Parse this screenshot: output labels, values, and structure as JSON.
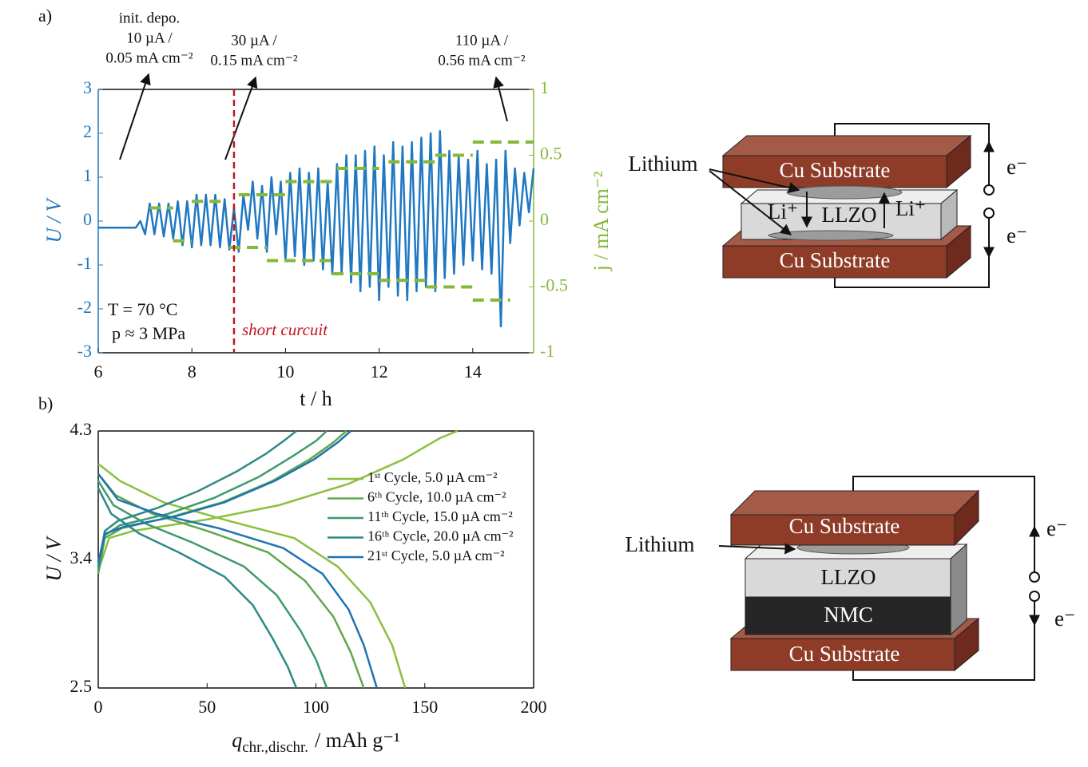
{
  "chart_data": [
    {
      "type": "line",
      "panel_label": "a)",
      "xlabel": "t / h",
      "ylabel": "U / V",
      "y2label": "j / mA cm⁻²",
      "xlim": [
        6,
        15.3
      ],
      "xticks": [
        6,
        8,
        10,
        12,
        14
      ],
      "ylim": [
        -3,
        3
      ],
      "yticks": [
        -3,
        -2,
        -1,
        0,
        1,
        2,
        3
      ],
      "y2lim": [
        -1,
        1
      ],
      "y2ticks": [
        -1,
        -0.5,
        0,
        0.5,
        1
      ],
      "y_color": "#1f78c1",
      "y2_color": "#86b83a",
      "series": [
        {
          "name": "U",
          "color": "#1f78c1",
          "x": [
            6.0,
            6.8,
            6.9,
            7.0,
            7.1,
            7.2,
            7.3,
            7.4,
            7.5,
            7.6,
            7.7,
            7.8,
            7.9,
            8.0,
            8.1,
            8.2,
            8.3,
            8.4,
            8.5,
            8.6,
            8.7,
            8.8,
            8.9,
            9.0,
            9.1,
            9.2,
            9.3,
            9.4,
            9.5,
            9.6,
            9.7,
            9.8,
            9.9,
            10.0,
            10.1,
            10.2,
            10.3,
            10.4,
            10.5,
            10.6,
            10.7,
            10.8,
            10.9,
            11.0,
            11.1,
            11.2,
            11.3,
            11.4,
            11.5,
            11.6,
            11.7,
            11.8,
            11.9,
            12.0,
            12.1,
            12.2,
            12.3,
            12.4,
            12.5,
            12.6,
            12.7,
            12.8,
            12.9,
            13.0,
            13.1,
            13.2,
            13.3,
            13.4,
            13.5,
            13.6,
            13.7,
            13.8,
            13.9,
            14.0,
            14.1,
            14.2,
            14.3,
            14.4,
            14.5,
            14.6,
            14.7,
            14.8,
            14.9,
            15.0,
            15.1,
            15.2,
            15.3
          ],
          "values": [
            -0.15,
            -0.15,
            0.0,
            -0.3,
            0.4,
            -0.3,
            0.4,
            -0.35,
            0.4,
            -0.4,
            0.45,
            -0.55,
            0.45,
            -0.6,
            0.6,
            -0.55,
            0.6,
            -0.55,
            0.6,
            -0.6,
            0.5,
            -0.65,
            0.3,
            -0.7,
            0.6,
            -0.2,
            0.9,
            -0.4,
            0.8,
            -0.7,
            1.0,
            -0.3,
            0.9,
            -0.9,
            1.1,
            -0.8,
            1.2,
            -1.0,
            1.1,
            -0.9,
            1.2,
            -1.1,
            0.9,
            -1.2,
            1.3,
            -1.2,
            1.5,
            -1.4,
            1.5,
            -1.6,
            1.6,
            -1.5,
            1.7,
            -1.8,
            1.5,
            -1.5,
            1.8,
            -1.7,
            1.7,
            -1.8,
            1.8,
            -1.6,
            1.9,
            -1.5,
            2.0,
            -1.6,
            2.05,
            -1.3,
            1.6,
            -1.2,
            1.5,
            -1.0,
            1.4,
            -0.9,
            1.6,
            -1.1,
            1.3,
            -1.2,
            1.4,
            -2.4,
            1.6,
            -0.5,
            1.2,
            -0.1,
            1.1,
            0.2,
            1.2
          ]
        },
        {
          "name": "j",
          "color": "#86b83a",
          "axis": "y2",
          "dashed": true,
          "x": [
            7.1,
            7.6,
            null,
            7.6,
            8.0,
            null,
            8.0,
            8.7,
            null,
            8.8,
            9.6,
            null,
            9.0,
            10.0,
            null,
            9.6,
            11.0,
            null,
            10.0,
            11.0,
            null,
            11.0,
            12.0,
            null,
            11.1,
            12.0,
            null,
            12.0,
            13.0,
            null,
            12.2,
            13.2,
            null,
            13.0,
            14.0,
            null,
            13.2,
            14.0,
            null,
            14.0,
            14.8,
            null,
            14.0,
            15.3
          ],
          "values": [
            0.1,
            0.1,
            null,
            -0.15,
            -0.15,
            null,
            0.15,
            0.15,
            null,
            -0.2,
            -0.2,
            null,
            0.2,
            0.2,
            null,
            -0.3,
            -0.3,
            null,
            0.3,
            0.3,
            null,
            -0.4,
            -0.4,
            null,
            0.4,
            0.4,
            null,
            -0.45,
            -0.45,
            null,
            0.45,
            0.45,
            null,
            -0.5,
            -0.5,
            null,
            0.5,
            0.5,
            null,
            -0.6,
            -0.6,
            null,
            0.6,
            0.6
          ]
        }
      ],
      "annotations": [
        {
          "lines": [
            "init. depo.",
            "10 µA /",
            "0.05 mA cm⁻²"
          ]
        },
        {
          "lines": [
            "30 µA /",
            "0.15 mA cm⁻²"
          ]
        },
        {
          "lines": [
            "110 µA /",
            "0.56 mA cm⁻²"
          ]
        }
      ],
      "conditions": [
        "T = 70 °C",
        "p ≈ 3 MPa"
      ],
      "short_circuit": {
        "text": "short curcuit",
        "x": 8.9,
        "color": "#c0161e"
      }
    },
    {
      "type": "line",
      "panel_label": "b)",
      "xlabel": [
        "q",
        "chr.,dischr.",
        "/ mAh g⁻¹"
      ],
      "ylabel": "U / V",
      "xlim": [
        0,
        200
      ],
      "xticks": [
        0,
        50,
        100,
        150,
        200
      ],
      "ylim": [
        2.5,
        4.3
      ],
      "yticks": [
        2.5,
        3.4,
        4.3
      ],
      "series": [
        {
          "name": "1ˢᵗ Cycle, 5.0 µA cm⁻²",
          "color": "#8cbf3f",
          "x": [
            0,
            5,
            16,
            50,
            83,
            115,
            140,
            157,
            165,
            null,
            0,
            10,
            30,
            60,
            90,
            110,
            125,
            135,
            141
          ],
          "values": [
            3.32,
            3.55,
            3.6,
            3.68,
            3.78,
            3.93,
            4.1,
            4.25,
            4.3,
            null,
            4.07,
            3.95,
            3.8,
            3.67,
            3.55,
            3.35,
            3.1,
            2.8,
            2.5
          ]
        },
        {
          "name": "6ᵗʰ Cycle, 10.0 µA cm⁻²",
          "color": "#5fa84a",
          "x": [
            0,
            3,
            11,
            34,
            57,
            80,
            97,
            108,
            114,
            null,
            0,
            8,
            25,
            50,
            78,
            95,
            108,
            116,
            122
          ],
          "values": [
            3.3,
            3.55,
            3.62,
            3.7,
            3.8,
            3.95,
            4.1,
            4.22,
            4.3,
            null,
            4.0,
            3.85,
            3.72,
            3.6,
            3.45,
            3.25,
            3.0,
            2.75,
            2.5
          ]
        },
        {
          "name": "11ᵗʰ Cycle, 15.0 µA cm⁻²",
          "color": "#3e9a6c",
          "x": [
            0,
            3,
            10,
            32,
            53,
            74,
            89,
            100,
            105,
            null,
            0,
            7,
            22,
            43,
            67,
            82,
            93,
            100,
            105
          ],
          "values": [
            3.32,
            3.57,
            3.64,
            3.72,
            3.83,
            3.98,
            4.12,
            4.23,
            4.3,
            null,
            3.95,
            3.78,
            3.65,
            3.52,
            3.35,
            3.15,
            2.9,
            2.7,
            2.5
          ]
        },
        {
          "name": "16ᵗʰ Cycle, 20.0 µA cm⁻²",
          "color": "#2d8a86",
          "x": [
            0,
            3,
            9,
            27,
            46,
            64,
            77,
            86,
            91,
            null,
            0,
            6,
            19,
            37,
            58,
            71,
            80,
            87,
            91
          ],
          "values": [
            3.35,
            3.6,
            3.67,
            3.76,
            3.88,
            4.02,
            4.14,
            4.24,
            4.3,
            null,
            3.9,
            3.72,
            3.58,
            3.45,
            3.28,
            3.08,
            2.85,
            2.65,
            2.5
          ]
        },
        {
          "name": "21ˢᵗ Cycle, 5.0 µA cm⁻²",
          "color": "#1f74b4",
          "x": [
            0,
            3,
            12,
            35,
            58,
            81,
            99,
            110,
            116,
            null,
            0,
            9,
            27,
            55,
            85,
            103,
            115,
            122,
            128
          ],
          "values": [
            3.38,
            3.58,
            3.63,
            3.7,
            3.8,
            3.95,
            4.1,
            4.22,
            4.3,
            null,
            4.0,
            3.82,
            3.72,
            3.62,
            3.48,
            3.3,
            3.05,
            2.8,
            2.5
          ]
        }
      ]
    }
  ],
  "diagrams": {
    "top": {
      "lithium": "Lithium",
      "cu_top": "Cu Substrate",
      "cu_bottom": "Cu Substrate",
      "llzo": "LLZO",
      "li_left": "Li⁺",
      "li_right": "Li⁺",
      "electron_top": "e⁻",
      "electron_bottom": "e⁻"
    },
    "bottom": {
      "lithium": "Lithium",
      "cu_top": "Cu Substrate",
      "llzo": "LLZO",
      "nmc": "NMC",
      "cu_bottom": "Cu Substrate",
      "electron_top": "e⁻",
      "electron_bottom": "e⁻"
    }
  }
}
